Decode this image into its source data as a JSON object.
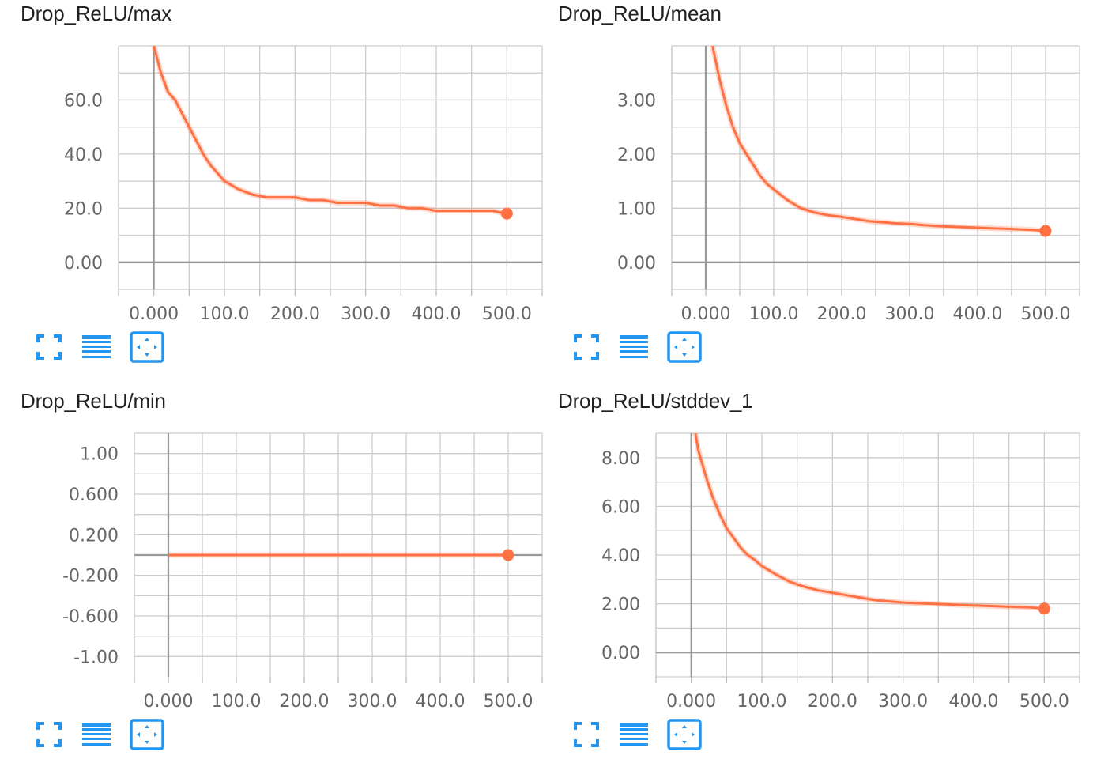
{
  "colors": {
    "series": "#ff7043",
    "grid": "#cccccc",
    "zero_axis": "#999999",
    "icon": "#2196f3"
  },
  "toolbar_icons": [
    "fullscreen-icon",
    "list-icon",
    "fit-domain-icon"
  ],
  "charts": [
    {
      "title": "Drop_ReLU/max",
      "yticks": [
        "60.0",
        "40.0",
        "20.0",
        "0.00"
      ],
      "xticks": [
        "0.000",
        "100.0",
        "200.0",
        "300.0",
        "400.0",
        "500.0"
      ]
    },
    {
      "title": "Drop_ReLU/mean",
      "yticks": [
        "3.00",
        "2.00",
        "1.00",
        "0.00"
      ],
      "xticks": [
        "0.000",
        "100.0",
        "200.0",
        "300.0",
        "400.0",
        "500.0"
      ]
    },
    {
      "title": "Drop_ReLU/min",
      "yticks": [
        "1.00",
        "0.600",
        "0.200",
        "-0.200",
        "-0.600",
        "-1.00"
      ],
      "xticks": [
        "0.000",
        "100.0",
        "200.0",
        "300.0",
        "400.0",
        "500.0"
      ]
    },
    {
      "title": "Drop_ReLU/stddev_1",
      "yticks": [
        "8.00",
        "6.00",
        "4.00",
        "2.00",
        "0.00"
      ],
      "xticks": [
        "0.000",
        "100.0",
        "200.0",
        "300.0",
        "400.0",
        "500.0"
      ]
    }
  ],
  "chart_data": [
    {
      "type": "line",
      "title": "Drop_ReLU/max",
      "xlim": [
        -50,
        550
      ],
      "ylim": [
        -10,
        80
      ],
      "grid": true,
      "x": [
        0,
        10,
        20,
        30,
        40,
        50,
        60,
        70,
        80,
        90,
        100,
        120,
        140,
        160,
        180,
        200,
        220,
        240,
        260,
        280,
        300,
        320,
        340,
        360,
        380,
        400,
        420,
        440,
        460,
        480,
        500
      ],
      "y": [
        80,
        70,
        63,
        60,
        55,
        50,
        45,
        40,
        36,
        33,
        30,
        27,
        25,
        24,
        24,
        24,
        23,
        23,
        22,
        22,
        22,
        21,
        21,
        20,
        20,
        19,
        19,
        19,
        19,
        19,
        18
      ]
    },
    {
      "type": "line",
      "title": "Drop_ReLU/mean",
      "xlim": [
        -50,
        550
      ],
      "ylim": [
        -0.5,
        4.0
      ],
      "grid": true,
      "x": [
        0,
        10,
        20,
        30,
        40,
        50,
        60,
        70,
        80,
        90,
        100,
        120,
        140,
        160,
        180,
        200,
        220,
        240,
        260,
        280,
        300,
        320,
        340,
        360,
        380,
        400,
        420,
        440,
        460,
        480,
        500
      ],
      "y": [
        4.8,
        4.0,
        3.4,
        2.9,
        2.5,
        2.2,
        2.0,
        1.8,
        1.6,
        1.45,
        1.35,
        1.15,
        1.0,
        0.92,
        0.87,
        0.84,
        0.8,
        0.76,
        0.74,
        0.72,
        0.71,
        0.69,
        0.67,
        0.66,
        0.65,
        0.64,
        0.63,
        0.62,
        0.61,
        0.6,
        0.58
      ]
    },
    {
      "type": "line",
      "title": "Drop_ReLU/min",
      "xlim": [
        -50,
        550
      ],
      "ylim": [
        -1.2,
        1.2
      ],
      "grid": true,
      "x": [
        0,
        500
      ],
      "y": [
        0,
        0
      ]
    },
    {
      "type": "line",
      "title": "Drop_ReLU/stddev_1",
      "xlim": [
        -50,
        550
      ],
      "ylim": [
        -1.0,
        9.0
      ],
      "grid": true,
      "x": [
        0,
        10,
        20,
        30,
        40,
        50,
        60,
        70,
        80,
        90,
        100,
        120,
        140,
        160,
        180,
        200,
        220,
        240,
        260,
        280,
        300,
        320,
        340,
        360,
        380,
        400,
        420,
        440,
        460,
        480,
        500
      ],
      "y": [
        10.0,
        8.3,
        7.3,
        6.4,
        5.7,
        5.1,
        4.7,
        4.3,
        4.0,
        3.8,
        3.55,
        3.2,
        2.9,
        2.7,
        2.55,
        2.45,
        2.35,
        2.25,
        2.15,
        2.1,
        2.05,
        2.02,
        2.0,
        1.98,
        1.95,
        1.93,
        1.91,
        1.89,
        1.87,
        1.85,
        1.8
      ]
    }
  ]
}
